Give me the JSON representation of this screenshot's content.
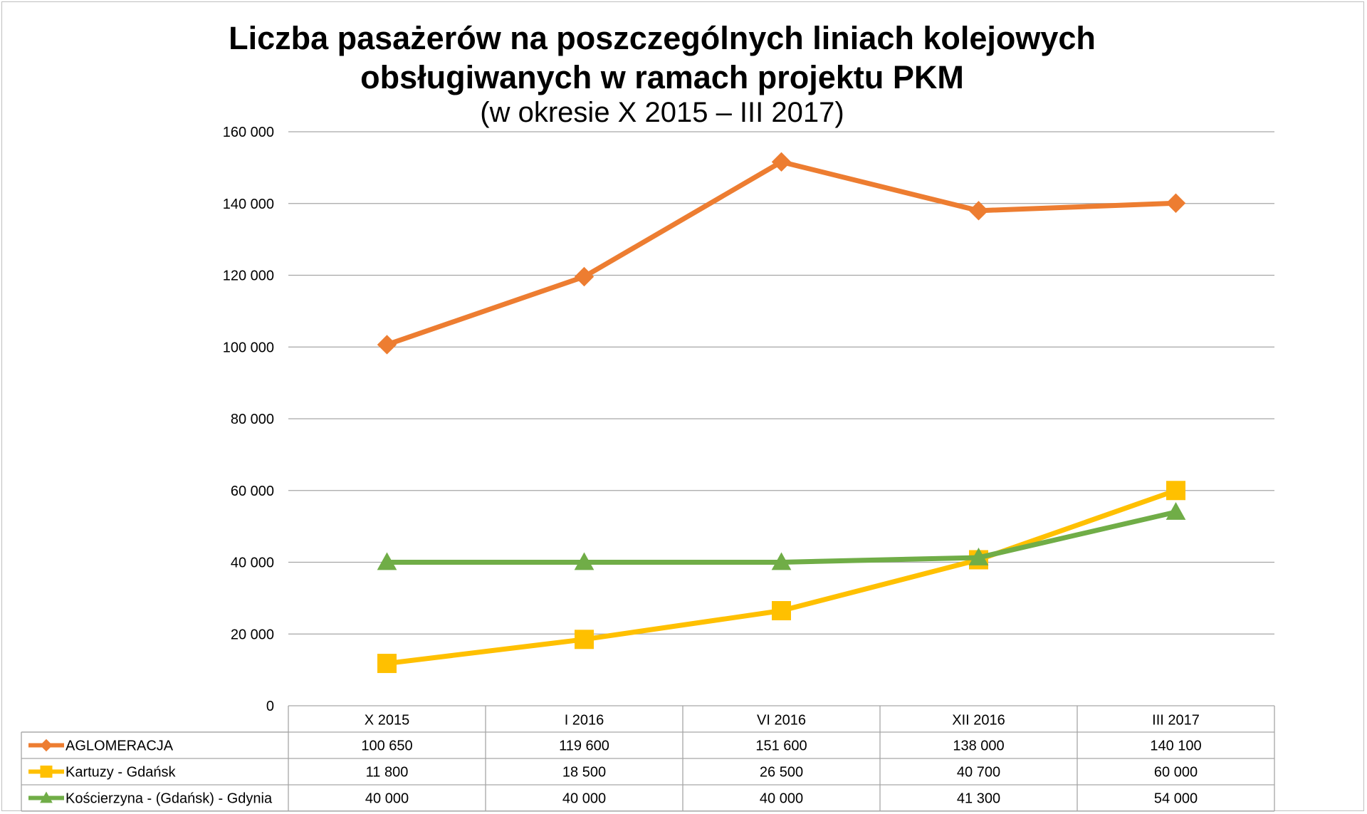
{
  "chart_data": {
    "type": "line",
    "title": "Liczba pasażerów na poszczególnych liniach kolejowych obsługiwanych w ramach projektu PKM",
    "title_line1": "Liczba pasażerów na poszczególnych liniach kolejowych",
    "title_line2": "obsługiwanych w ramach projektu PKM",
    "subtitle": "(w okresie X 2015 – III 2017)",
    "xlabel": "",
    "ylabel": "",
    "ylim": [
      0,
      160000
    ],
    "yticks": [
      0,
      20000,
      40000,
      60000,
      80000,
      100000,
      120000,
      140000,
      160000
    ],
    "ytick_labels": [
      "0",
      "20 000",
      "40 000",
      "60 000",
      "80 000",
      "100 000",
      "120 000",
      "140 000",
      "160 000"
    ],
    "grid": true,
    "legend": "data-table-below",
    "categories": [
      "X 2015",
      "I 2016",
      "VI 2016",
      "XII 2016",
      "III 2017"
    ],
    "series": [
      {
        "name": "AGLOMERACJA",
        "color": "#ed7d31",
        "marker": "diamond",
        "values": [
          100650,
          119600,
          151600,
          138000,
          140100
        ],
        "labels": [
          "100 650",
          "119 600",
          "151 600",
          "138 000",
          "140 100"
        ]
      },
      {
        "name": "Kartuzy - Gdańsk",
        "color": "#ffc000",
        "marker": "square",
        "values": [
          11800,
          18500,
          26500,
          40700,
          60000
        ],
        "labels": [
          "11 800",
          "18 500",
          "26 500",
          "40 700",
          "60 000"
        ]
      },
      {
        "name": "Kościerzyna - (Gdańsk) - Gdynia",
        "color": "#70ad47",
        "marker": "triangle",
        "values": [
          40000,
          40000,
          40000,
          41300,
          54000
        ],
        "labels": [
          "40 000",
          "40 000",
          "40 000",
          "41 300",
          "54 000"
        ]
      }
    ]
  }
}
